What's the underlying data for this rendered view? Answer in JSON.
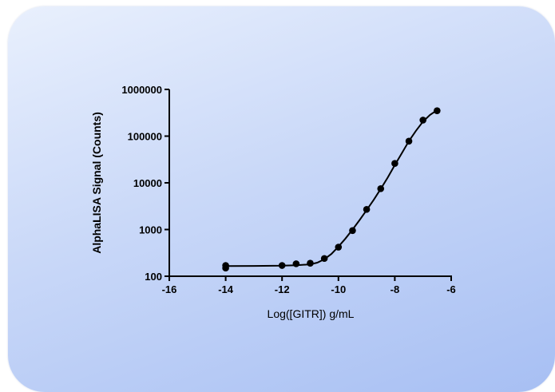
{
  "chart_data": {
    "type": "scatter",
    "xlabel": "Log([GITR]) g/mL",
    "ylabel": "AlphaLISA Signal (Counts)",
    "xlim": [
      -16,
      -6
    ],
    "ylim": [
      100,
      1000000
    ],
    "y_scale": "log",
    "grid": false,
    "x_ticks": [
      "-16",
      "-14",
      "-12",
      "-10",
      "-8",
      "-6"
    ],
    "y_ticks": [
      "100",
      "1000",
      "10000",
      "100000",
      "1000000"
    ],
    "x_tick_values": [
      -16,
      -14,
      -12,
      -10,
      -8,
      -6
    ],
    "y_tick_values": [
      100,
      1000,
      10000,
      100000,
      1000000
    ],
    "series": [
      {
        "x": [
          -14,
          -14,
          -12,
          -11.5,
          -11,
          -10.5,
          -10,
          -9.5,
          -9,
          -8.5,
          -8,
          -7.5,
          -7,
          -6.5
        ],
        "y": [
          150,
          170,
          170,
          185,
          190,
          240,
          420,
          950,
          2700,
          7500,
          26000,
          78000,
          220000,
          350000
        ],
        "color": "#000000"
      }
    ],
    "fit_curve": {
      "x": [
        -14,
        -13,
        -12,
        -11.5,
        -11,
        -10.75,
        -10.5,
        -10.25,
        -10,
        -9.75,
        -9.5,
        -9.25,
        -9,
        -8.75,
        -8.5,
        -8.25,
        -8,
        -7.75,
        -7.5,
        -7.25,
        -7,
        -6.75,
        -6.5
      ],
      "y": [
        165,
        166,
        168,
        172,
        180,
        195,
        230,
        300,
        430,
        640,
        1000,
        1600,
        2600,
        4300,
        7400,
        13000,
        24000,
        43000,
        78000,
        130000,
        205000,
        285000,
        360000
      ],
      "color": "#000000"
    }
  }
}
